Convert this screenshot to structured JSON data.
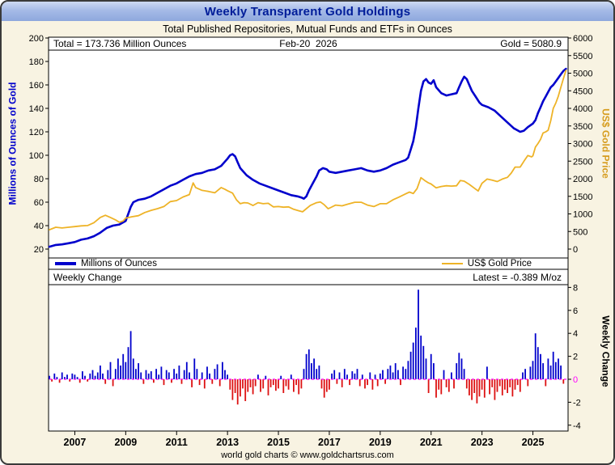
{
  "window": {
    "title": "Weekly Transparent Gold Holdings",
    "subtitle": "Total Published Repositories, Mutual Funds and ETFs in Ounces",
    "footer": "world gold charts © www.goldchartsrus.com"
  },
  "colors": {
    "holdings_line": "#0000cc",
    "gold_line": "#eeb327",
    "positive_bar": "#0000cc",
    "negative_bar": "#dd1111",
    "zero_line": "#ff00ff",
    "left_axis_title": "#0000cc",
    "right_axis_title": "#d69c1e",
    "title_text": "#001d99",
    "background": "#f8f3e2"
  },
  "chart_data": [
    {
      "type": "line",
      "title": "Weekly Transparent Gold Holdings",
      "subtitle": "Total Published Repositories, Mutual Funds and ETFs in Ounces",
      "x_range": [
        2006.0,
        2026.35
      ],
      "x_ticks": [
        2007,
        2009,
        2011,
        2013,
        2015,
        2017,
        2019,
        2021,
        2023,
        2025
      ],
      "left_axis": {
        "label": "Millions of Ounces of Gold",
        "range": [
          20,
          200
        ],
        "ticks": [
          20,
          40,
          60,
          80,
          100,
          120,
          140,
          160,
          180,
          200
        ]
      },
      "right_axis": {
        "label": "US$ Gold Price",
        "range": [
          0,
          6000
        ],
        "ticks": [
          0,
          500,
          1000,
          1500,
          2000,
          2500,
          3000,
          3500,
          4000,
          4500,
          5000,
          5500,
          6000
        ]
      },
      "annotations": {
        "total": "Total = 173.736 Million Ounces",
        "date": "Feb-20  2026",
        "gold": "Gold = 5080.9"
      },
      "series": [
        {
          "name": "Millions of Ounces",
          "color": "#0000cc",
          "axis": "left",
          "x": [
            2006.0,
            2006.25,
            2006.5,
            2006.75,
            2007.0,
            2007.25,
            2007.5,
            2007.75,
            2008.0,
            2008.25,
            2008.5,
            2008.75,
            2009.0,
            2009.1,
            2009.2,
            2009.3,
            2009.5,
            2009.75,
            2010.0,
            2010.25,
            2010.5,
            2010.75,
            2011.0,
            2011.25,
            2011.5,
            2011.75,
            2012.0,
            2012.25,
            2012.5,
            2012.75,
            2013.0,
            2013.1,
            2013.2,
            2013.3,
            2013.4,
            2013.5,
            2013.75,
            2014.0,
            2014.25,
            2014.5,
            2014.75,
            2015.0,
            2015.25,
            2015.5,
            2015.75,
            2015.9,
            2016.0,
            2016.1,
            2016.2,
            2016.35,
            2016.5,
            2016.6,
            2016.75,
            2016.9,
            2017.0,
            2017.25,
            2017.5,
            2017.75,
            2018.0,
            2018.25,
            2018.5,
            2018.75,
            2019.0,
            2019.25,
            2019.5,
            2019.75,
            2020.0,
            2020.1,
            2020.2,
            2020.3,
            2020.4,
            2020.5,
            2020.6,
            2020.7,
            2020.8,
            2020.9,
            2021.0,
            2021.1,
            2021.2,
            2021.4,
            2021.6,
            2021.8,
            2022.0,
            2022.1,
            2022.2,
            2022.3,
            2022.4,
            2022.5,
            2022.6,
            2022.75,
            2022.9,
            2023.0,
            2023.25,
            2023.5,
            2023.75,
            2024.0,
            2024.25,
            2024.5,
            2024.65,
            2024.8,
            2025.0,
            2025.1,
            2025.2,
            2025.3,
            2025.4,
            2025.5,
            2025.6,
            2025.7,
            2025.8,
            2025.9,
            2026.0,
            2026.1,
            2026.2,
            2026.3
          ],
          "y": [
            22,
            23.5,
            24,
            25,
            26,
            28,
            29,
            31,
            34,
            38,
            40,
            41,
            44,
            50,
            56,
            60,
            62,
            63,
            65,
            68,
            71,
            74,
            76,
            79,
            82,
            84,
            85,
            87,
            88,
            91,
            97,
            100,
            101,
            99,
            94,
            89,
            83,
            79,
            76,
            74,
            72,
            70,
            68,
            66,
            65,
            64,
            63,
            65,
            70,
            76,
            82,
            87,
            89,
            88,
            86,
            85,
            86,
            87,
            88,
            89,
            87,
            86,
            87,
            89,
            92,
            94,
            96,
            98,
            105,
            112,
            124,
            140,
            155,
            163,
            165,
            162,
            161,
            164,
            158,
            153,
            151,
            152,
            153,
            158,
            163,
            167,
            165,
            160,
            155,
            150,
            145,
            143,
            141,
            138,
            133,
            128,
            123,
            120,
            121,
            124,
            127,
            130,
            136,
            141,
            146,
            150,
            154,
            158,
            160,
            163,
            166,
            169,
            172,
            173.736
          ]
        },
        {
          "name": "US$ Gold Price",
          "color": "#eeb327",
          "axis": "right",
          "x": [
            2006.0,
            2006.25,
            2006.5,
            2006.75,
            2007.0,
            2007.25,
            2007.5,
            2007.75,
            2008.0,
            2008.2,
            2008.4,
            2008.6,
            2008.75,
            2008.9,
            2009.0,
            2009.25,
            2009.5,
            2009.75,
            2010.0,
            2010.25,
            2010.5,
            2010.75,
            2011.0,
            2011.25,
            2011.5,
            2011.65,
            2011.75,
            2011.9,
            2012.0,
            2012.25,
            2012.5,
            2012.75,
            2012.9,
            2013.0,
            2013.2,
            2013.35,
            2013.5,
            2013.65,
            2013.8,
            2014.0,
            2014.2,
            2014.4,
            2014.6,
            2014.8,
            2015.0,
            2015.2,
            2015.4,
            2015.6,
            2015.8,
            2015.95,
            2016.1,
            2016.25,
            2016.5,
            2016.65,
            2016.8,
            2016.95,
            2017.0,
            2017.25,
            2017.5,
            2017.75,
            2018.0,
            2018.25,
            2018.5,
            2018.75,
            2019.0,
            2019.25,
            2019.5,
            2019.75,
            2020.0,
            2020.15,
            2020.3,
            2020.45,
            2020.6,
            2020.75,
            2020.9,
            2021.0,
            2021.2,
            2021.4,
            2021.6,
            2021.8,
            2022.0,
            2022.15,
            2022.3,
            2022.5,
            2022.7,
            2022.85,
            2023.0,
            2023.2,
            2023.4,
            2023.6,
            2023.8,
            2024.0,
            2024.15,
            2024.3,
            2024.5,
            2024.65,
            2024.8,
            2024.95,
            2025.0,
            2025.1,
            2025.2,
            2025.3,
            2025.4,
            2025.5,
            2025.6,
            2025.7,
            2025.8,
            2025.9,
            2026.0,
            2026.1,
            2026.2,
            2026.3
          ],
          "y": [
            550,
            620,
            600,
            620,
            640,
            660,
            670,
            750,
            900,
            960,
            900,
            830,
            760,
            800,
            880,
            920,
            950,
            1040,
            1100,
            1150,
            1210,
            1350,
            1380,
            1480,
            1550,
            1880,
            1750,
            1700,
            1670,
            1640,
            1600,
            1750,
            1700,
            1660,
            1590,
            1400,
            1290,
            1320,
            1310,
            1240,
            1320,
            1290,
            1300,
            1200,
            1210,
            1190,
            1200,
            1130,
            1090,
            1060,
            1150,
            1240,
            1320,
            1340,
            1260,
            1150,
            1160,
            1250,
            1230,
            1280,
            1330,
            1330,
            1250,
            1210,
            1290,
            1290,
            1400,
            1480,
            1570,
            1620,
            1580,
            1720,
            2030,
            1950,
            1880,
            1850,
            1740,
            1780,
            1800,
            1790,
            1800,
            1950,
            1930,
            1840,
            1730,
            1650,
            1870,
            1990,
            1960,
            1920,
            1990,
            2040,
            2160,
            2330,
            2330,
            2500,
            2660,
            2620,
            2650,
            2900,
            3000,
            3120,
            3300,
            3330,
            3380,
            3650,
            4000,
            4150,
            4350,
            4600,
            4850,
            5080.9
          ]
        }
      ]
    },
    {
      "type": "bar",
      "title": "Weekly Change",
      "annotations": {
        "latest": "Latest = -0.389 M/oz"
      },
      "right_axis": {
        "label": "Weekly Change",
        "range": [
          -4,
          8
        ],
        "ticks": [
          8,
          6,
          4,
          2,
          0,
          -2,
          -4
        ]
      },
      "positive_color": "#0000cc",
      "negative_color": "#dd1111",
      "zero_color": "#ff00ff",
      "x_start": 2006.0,
      "x_step": 0.1,
      "values": [
        0.3,
        -0.2,
        0.5,
        0.2,
        -0.3,
        0.6,
        0.2,
        0.4,
        -0.2,
        0.5,
        0.4,
        0.2,
        -0.3,
        0.7,
        0.3,
        -0.2,
        0.5,
        0.8,
        0.3,
        0.6,
        1.2,
        0.5,
        -0.4,
        0.8,
        1.5,
        -0.6,
        0.9,
        1.8,
        1.2,
        2.2,
        1.5,
        2.8,
        4.2,
        1.8,
        0.9,
        1.4,
        0.6,
        -0.4,
        0.8,
        0.5,
        0.7,
        -0.3,
        0.9,
        0.4,
        1.1,
        -0.5,
        0.8,
        0.6,
        -0.3,
        0.9,
        0.5,
        1.2,
        -0.4,
        0.8,
        1.5,
        0.6,
        -0.7,
        1.8,
        0.9,
        -0.5,
        0.6,
        -0.8,
        1.1,
        0.5,
        -0.4,
        0.9,
        1.3,
        -0.6,
        1.5,
        0.8,
        0.4,
        -0.9,
        -1.8,
        -1.2,
        -2.2,
        -1.5,
        -0.8,
        -1.9,
        -1.1,
        -0.7,
        -1.3,
        -0.6,
        0.4,
        -1.1,
        -0.8,
        0.3,
        -1.4,
        -0.7,
        -0.5,
        -1.0,
        -0.8,
        0.3,
        -1.2,
        -0.6,
        -0.9,
        0.4,
        -1.1,
        -0.5,
        -1.3,
        -0.8,
        0.9,
        2.2,
        2.6,
        1.4,
        1.8,
        0.9,
        1.2,
        -0.8,
        -1.6,
        -1.1,
        -0.9,
        0.5,
        0.8,
        -0.4,
        0.6,
        -0.7,
        0.9,
        0.4,
        -0.5,
        0.7,
        0.5,
        0.9,
        -0.6,
        0.4,
        -0.8,
        -0.5,
        0.6,
        -0.9,
        0.4,
        -0.6,
        0.5,
        0.8,
        -0.4,
        0.9,
        1.2,
        0.6,
        1.4,
        0.8,
        -0.5,
        1.1,
        0.9,
        1.6,
        2.4,
        3.2,
        4.5,
        7.8,
        3.8,
        2.9,
        1.8,
        -1.2,
        2.2,
        1.4,
        -1.6,
        -0.9,
        -1.3,
        0.8,
        -0.7,
        -1.1,
        0.6,
        -0.8,
        1.4,
        2.3,
        1.8,
        0.9,
        -0.8,
        -1.4,
        -1.8,
        -1.2,
        -2.1,
        -1.5,
        -0.9,
        -1.6,
        1.1,
        -1.3,
        -0.7,
        -1.8,
        -1.1,
        -0.6,
        -1.4,
        -0.9,
        -1.2,
        -0.7,
        -1.5,
        -0.9,
        -0.5,
        -1.1,
        0.6,
        0.9,
        -0.6,
        1.1,
        1.6,
        4.0,
        2.8,
        2.2,
        1.4,
        -0.6,
        1.8,
        1.2,
        2.4,
        1.5,
        1.8,
        1.2,
        -0.389
      ]
    }
  ]
}
